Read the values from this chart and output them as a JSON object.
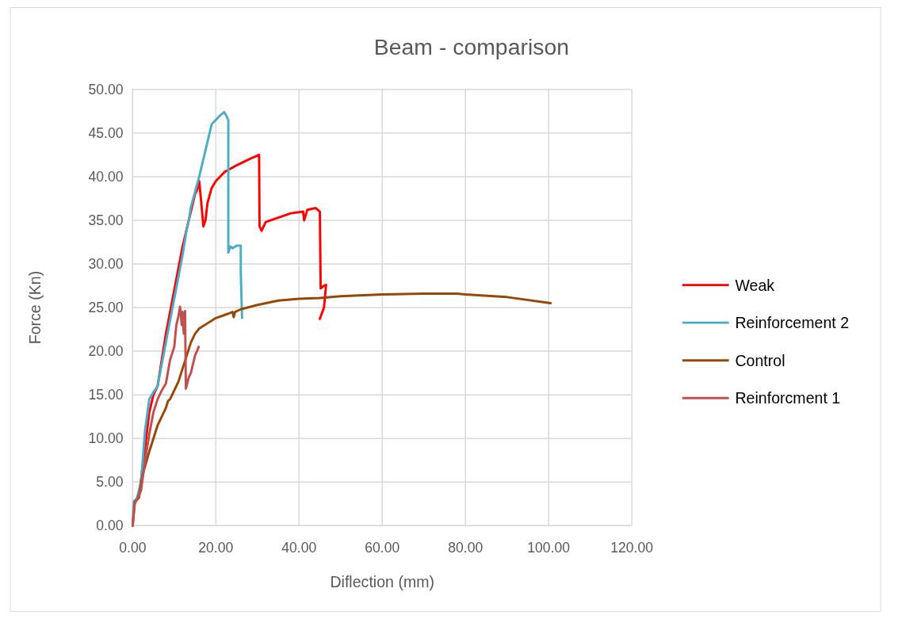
{
  "chart_data": {
    "type": "line",
    "title": "Beam - comparison",
    "xlabel": "Diflection (mm)",
    "ylabel": "Force (Kn)",
    "xlim": [
      0,
      120
    ],
    "xticks": [
      {
        "value": 0,
        "label": "0.00"
      },
      {
        "value": 20,
        "label": "20.00"
      },
      {
        "value": 40,
        "label": "40.00"
      },
      {
        "value": 60,
        "label": "60.00"
      },
      {
        "value": 80,
        "label": "80.00"
      },
      {
        "value": 100,
        "label": "100.00"
      },
      {
        "value": 120,
        "label": "120.00"
      }
    ],
    "ylim": [
      0,
      50
    ],
    "yticks": [
      {
        "value": 0,
        "label": "0.00"
      },
      {
        "value": 5,
        "label": "5.00"
      },
      {
        "value": 10,
        "label": "10.00"
      },
      {
        "value": 15,
        "label": "15.00"
      },
      {
        "value": 20,
        "label": "20.00"
      },
      {
        "value": 25,
        "label": "25.00"
      },
      {
        "value": 30,
        "label": "30.00"
      },
      {
        "value": 35,
        "label": "35.00"
      },
      {
        "value": 40,
        "label": "40.00"
      },
      {
        "value": 45,
        "label": "45.00"
      },
      {
        "value": 50,
        "label": "50.00"
      }
    ],
    "grid": true,
    "legend": "right",
    "marker": "none",
    "line_style": "solid",
    "series": [
      {
        "name": "Weak",
        "color": "#ff0000",
        "x": [
          1.5,
          3,
          4,
          5,
          6,
          8,
          10,
          12,
          14,
          15,
          15.5,
          16,
          16.5,
          17,
          17.5,
          18,
          19,
          20,
          22,
          25,
          28,
          30.4,
          30.5,
          31,
          32,
          35,
          38,
          41,
          41.2,
          42,
          44,
          45,
          45.2,
          46,
          46.5,
          46,
          45
        ],
        "values": [
          3.3,
          9,
          13,
          15,
          16,
          22,
          27,
          32,
          36,
          38,
          38.5,
          39.5,
          37,
          34.3,
          35,
          37,
          38.7,
          39.5,
          40.5,
          41.3,
          42,
          42.5,
          34.3,
          33.8,
          34.8,
          35.3,
          35.8,
          36,
          35,
          36.2,
          36.4,
          36,
          27.2,
          27.5,
          27.6,
          25,
          23.7
        ]
      },
      {
        "name": "Reinforcement 2",
        "color": "#4bacc6",
        "x": [
          0,
          0.3,
          1,
          2,
          3,
          4,
          5,
          6,
          8,
          10,
          12,
          13,
          13.5,
          14,
          16,
          18,
          19,
          21,
          22,
          22.5,
          23,
          23,
          23.5,
          24,
          25,
          26,
          26,
          26.3
        ],
        "values": [
          0,
          2.8,
          3.1,
          5,
          11,
          14.5,
          15.3,
          16,
          21,
          26,
          31,
          34,
          35,
          36.5,
          40,
          44,
          46,
          47,
          47.4,
          47,
          46.5,
          31.3,
          32,
          31.8,
          32.1,
          32.1,
          29,
          23.8
        ]
      },
      {
        "name": "Control",
        "color": "#974706",
        "x": [
          0,
          0.5,
          1.5,
          2.5,
          4,
          5,
          6,
          8,
          8.5,
          9,
          10,
          11,
          12,
          13,
          14,
          15,
          16,
          18,
          20,
          23,
          24,
          24.3,
          24.6,
          26,
          30,
          35,
          40,
          45,
          50,
          60,
          70,
          78,
          80,
          90,
          100.5
        ],
        "values": [
          0,
          2.7,
          3.2,
          6,
          8.5,
          10,
          11.5,
          13.5,
          14.3,
          14.5,
          15.5,
          16.5,
          18,
          19.5,
          21,
          22,
          22.6,
          23.2,
          23.8,
          24.3,
          24.5,
          23.9,
          24.5,
          24.8,
          25.3,
          25.8,
          26,
          26.1,
          26.3,
          26.5,
          26.6,
          26.6,
          26.5,
          26.2,
          25.5
        ]
      },
      {
        "name": "Reinforcment 1",
        "color": "#c0504d",
        "x": [
          0,
          0.5,
          1,
          2,
          3,
          4,
          5,
          6,
          7,
          8,
          9,
          10,
          10.5,
          11,
          11.4,
          11.8,
          12,
          12.3,
          12.6,
          12.7,
          12.8,
          13.5,
          14,
          15,
          15.9
        ],
        "values": [
          0,
          2.5,
          3,
          4,
          7.5,
          10.5,
          13,
          14.5,
          15.5,
          16.3,
          19,
          20.5,
          23,
          24,
          25.1,
          23,
          24.5,
          22,
          24.6,
          20,
          15.7,
          17,
          17.5,
          19.5,
          20.5
        ]
      }
    ]
  }
}
